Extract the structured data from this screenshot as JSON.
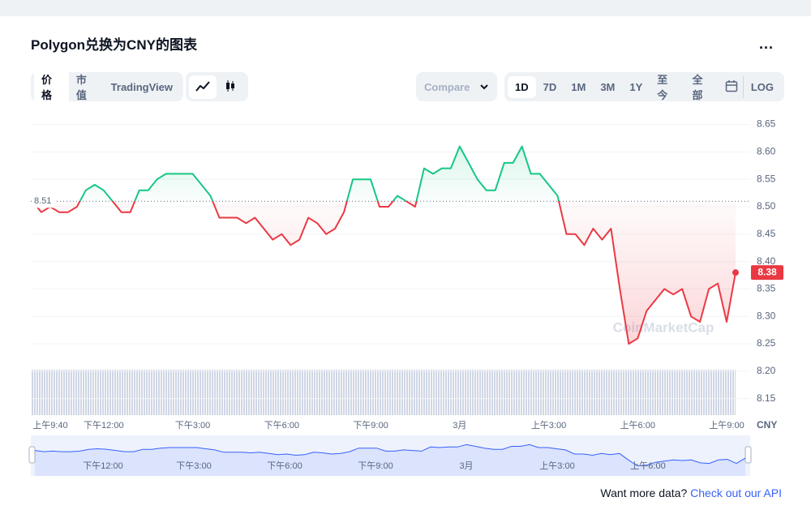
{
  "ui": {
    "title": "Polygon兑换为CNY的图表",
    "menu": "...",
    "tabs": [
      "价格",
      "市值",
      "TradingView"
    ],
    "compare": "Compare",
    "ranges": [
      "1D",
      "7D",
      "1M",
      "3M",
      "1Y",
      "至今",
      "全部"
    ],
    "log": "LOG",
    "watermark": "CoinMarketCap",
    "footer": {
      "text": "Want more data?",
      "link": "Check out our API"
    }
  },
  "chart_data": {
    "type": "line",
    "unit": "CNY",
    "categories": [
      null,
      null,
      "上午9:40",
      null,
      null,
      null,
      null,
      null,
      "下午12:00",
      null,
      null,
      null,
      null,
      null,
      null,
      null,
      null,
      null,
      "下午3:00",
      null,
      null,
      null,
      null,
      null,
      null,
      null,
      null,
      null,
      "下午6:00",
      null,
      null,
      null,
      null,
      null,
      null,
      null,
      null,
      null,
      "下午9:00",
      null,
      null,
      null,
      null,
      null,
      null,
      null,
      null,
      null,
      "3月",
      null,
      null,
      null,
      null,
      null,
      null,
      null,
      null,
      null,
      "上午3:00",
      null,
      null,
      null,
      null,
      null,
      null,
      null,
      null,
      null,
      "上午6:00",
      null,
      null,
      null,
      null,
      null,
      null,
      null,
      null,
      null,
      "上午9:00",
      null
    ],
    "values": [
      8.51,
      8.49,
      8.5,
      8.49,
      8.49,
      8.5,
      8.53,
      8.54,
      8.53,
      8.51,
      8.49,
      8.49,
      8.53,
      8.53,
      8.55,
      8.56,
      8.56,
      8.56,
      8.56,
      8.54,
      8.52,
      8.48,
      8.48,
      8.48,
      8.47,
      8.48,
      8.46,
      8.44,
      8.45,
      8.43,
      8.44,
      8.48,
      8.47,
      8.45,
      8.46,
      8.49,
      8.55,
      8.55,
      8.55,
      8.5,
      8.5,
      8.52,
      8.51,
      8.5,
      8.57,
      8.56,
      8.57,
      8.57,
      8.61,
      8.58,
      8.55,
      8.53,
      8.53,
      8.58,
      8.58,
      8.61,
      8.56,
      8.56,
      8.54,
      8.52,
      8.45,
      8.45,
      8.43,
      8.46,
      8.44,
      8.46,
      8.35,
      8.25,
      8.26,
      8.31,
      8.33,
      8.35,
      8.34,
      8.35,
      8.3,
      8.29,
      8.35,
      8.36,
      8.29,
      8.38
    ],
    "up_color": "#16c784",
    "down_color": "#ea3943",
    "reference_price": 8.51,
    "current_price": 8.38,
    "ylim": [
      8.12,
      8.67
    ],
    "yticks": [
      8.15,
      {
        "value": 8.2,
        "label": "8.20"
      },
      8.25,
      {
        "value": 8.3,
        "label": "8.30"
      },
      8.35,
      {
        "value": 8.4,
        "label": "8.40"
      },
      8.45,
      {
        "value": 8.5,
        "label": "8.50"
      },
      8.55,
      {
        "value": 8.6,
        "label": "8.60"
      },
      8.65
    ],
    "grid": true
  },
  "navigator": {
    "labels": [
      "下午12:00",
      "下午3:00",
      "下午6:00",
      "下午9:00",
      "3月",
      "上午3:00",
      "上午6:00"
    ],
    "color": "#3861fb"
  }
}
